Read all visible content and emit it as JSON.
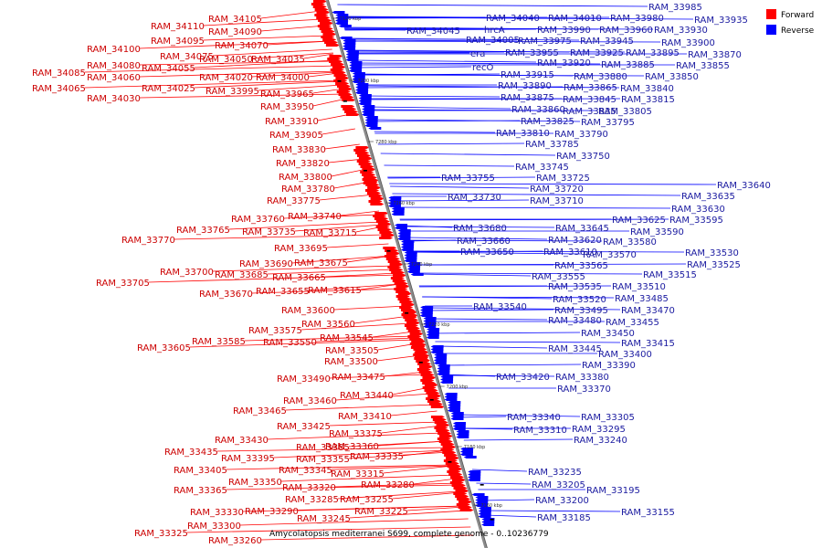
{
  "legend": [
    {
      "label": "Forward",
      "color": "#ff0000"
    },
    {
      "label": "Reverse",
      "color": "#0000ff"
    }
  ],
  "caption": "Amycolatopsis mediterranei S699, complete genome - 0..10236779",
  "ticks": [
    "7120 kbp",
    "7200 kbp",
    "7280 kbp",
    "7260 kbp",
    "7240 kbp",
    "7220 kbp",
    "7200 kbp",
    "7180 kbp",
    "7160 kbp"
  ],
  "colors": {
    "forward": "#ff0000",
    "reverse": "#0000ff",
    "forward_label": "#cc0000",
    "reverse_label": "#1a1aa0"
  },
  "left_labels": [
    "RAM_34105",
    "RAM_34110",
    "RAM_34090",
    "RAM_34095",
    "RAM_34070",
    "RAM_34100",
    "RAM_34075",
    "RAM_34050",
    "RAM_34035",
    "RAM_34080",
    "RAM_34055",
    "RAM_34085",
    "RAM_34060",
    "RAM_34020",
    "RAM_34000",
    "RAM_34065",
    "RAM_34025",
    "RAM_33995",
    "RAM_33965",
    "RAM_34030",
    "RAM_33950",
    "RAM_33910",
    "RAM_33905",
    "RAM_33830",
    "RAM_33820",
    "RAM_33800",
    "RAM_33780",
    "RAM_33775",
    "RAM_33740",
    "RAM_33760",
    "RAM_33765",
    "RAM_33735",
    "RAM_33715",
    "RAM_33770",
    "RAM_33695",
    "RAM_33690",
    "RAM_33675",
    "RAM_33700",
    "RAM_33685",
    "RAM_33665",
    "RAM_33705",
    "RAM_33655",
    "RAM_33615",
    "RAM_33670",
    "RAM_33600",
    "RAM_33560",
    "RAM_33575",
    "RAM_33545",
    "RAM_33585",
    "RAM_33550",
    "RAM_33605",
    "RAM_33505",
    "RAM_33500",
    "RAM_33475",
    "RAM_33490",
    "RAM_33440",
    "RAM_33460",
    "RAM_33465",
    "RAM_33410",
    "RAM_33425",
    "RAM_33375",
    "RAM_33430",
    "RAM_33385",
    "RAM_33360",
    "RAM_33435",
    "RAM_33395",
    "RAM_33355",
    "RAM_33335",
    "RAM_33405",
    "RAM_33345",
    "RAM_33315",
    "RAM_33350",
    "RAM_33280",
    "RAM_33365",
    "RAM_33320",
    "RAM_33285",
    "RAM_33255",
    "RAM_33330",
    "RAM_33290",
    "RAM_33225",
    "RAM_33245",
    "RAM_33300",
    "RAM_33325",
    "RAM_33260"
  ],
  "right_labels": [
    "RAM_33985",
    "RAM_34040",
    "RAM_34010",
    "RAM_33980",
    "RAM_33935",
    "RAM_34045",
    "hrcA",
    "RAM_33990",
    "RAM_33960",
    "RAM_33930",
    "RAM_34005",
    "RAM_33975",
    "RAM_33945",
    "RAM_33900",
    "era",
    "RAM_33955",
    "RAM_33925",
    "RAM_33895",
    "RAM_33870",
    "recO",
    "RAM_33920",
    "RAM_33885",
    "RAM_33855",
    "RAM_33915",
    "RAM_33880",
    "RAM_33850",
    "RAM_33890",
    "RAM_33865",
    "RAM_33840",
    "RAM_33875",
    "RAM_33845",
    "RAM_33815",
    "RAM_33860",
    "RAM_33835",
    "RAM_33805",
    "RAM_33825",
    "RAM_33795",
    "RAM_33810",
    "RAM_33790",
    "RAM_33785",
    "RAM_33750",
    "RAM_33745",
    "RAM_33755",
    "RAM_33725",
    "RAM_33720",
    "RAM_33640",
    "RAM_33730",
    "RAM_33710",
    "RAM_33635",
    "RAM_33630",
    "RAM_33625",
    "RAM_33595",
    "RAM_33680",
    "RAM_33645",
    "RAM_33590",
    "RAM_33660",
    "RAM_33620",
    "RAM_33580",
    "RAM_33650",
    "RAM_33610",
    "RAM_33570",
    "RAM_33530",
    "RAM_33565",
    "RAM_33525",
    "RAM_33555",
    "RAM_33515",
    "RAM_33535",
    "RAM_33510",
    "RAM_33520",
    "RAM_33485",
    "RAM_33540",
    "RAM_33495",
    "RAM_33470",
    "RAM_33480",
    "RAM_33455",
    "RAM_33450",
    "RAM_33445",
    "RAM_33415",
    "RAM_33400",
    "RAM_33390",
    "RAM_33420",
    "RAM_33380",
    "RAM_33370",
    "RAM_33340",
    "RAM_33305",
    "RAM_33310",
    "RAM_33295",
    "RAM_33240",
    "RAM_33235",
    "RAM_33205",
    "RAM_33195",
    "RAM_33200",
    "RAM_33185",
    "RAM_33155"
  ]
}
